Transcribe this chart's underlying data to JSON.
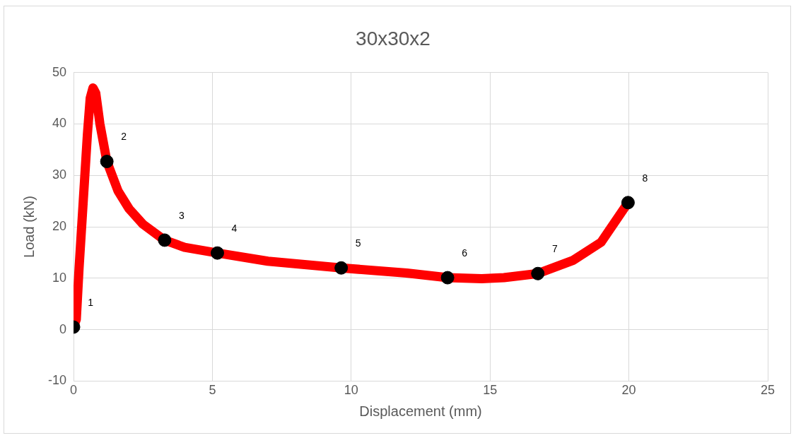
{
  "chart_data": {
    "type": "line",
    "title": "30x30x2",
    "xlabel": "Displacement (mm)",
    "ylabel": "Load (kN)",
    "series": [
      {
        "color": "#ff0000",
        "x": [
          0,
          0.1,
          0.2,
          0.35,
          0.5,
          0.6,
          0.7,
          0.8,
          0.95,
          1.2,
          1.6,
          2,
          2.5,
          3.28,
          4,
          5.18,
          7,
          9.64,
          12,
          13.47,
          14.7,
          15.5,
          16.72,
          18,
          19,
          19.97
        ],
        "values": [
          0.5,
          2,
          12,
          25,
          38,
          45,
          47,
          46,
          40,
          32.7,
          27,
          23.5,
          20.5,
          17.4,
          16,
          14.9,
          13.3,
          12,
          11,
          10.1,
          9.9,
          10.1,
          10.9,
          13.5,
          17,
          24.7
        ]
      },
      {
        "type": "scatter",
        "color": "#000000",
        "marker": "circle",
        "x": [
          0,
          1.2,
          3.28,
          5.18,
          9.64,
          13.47,
          16.72,
          19.97
        ],
        "values": [
          0.5,
          32.7,
          17.4,
          14.9,
          12,
          10.1,
          10.9,
          24.7
        ]
      }
    ],
    "annotations": [
      {
        "text": "1",
        "x": 0,
        "y": 0.5
      },
      {
        "text": "2",
        "x": 1.2,
        "y": 32.7
      },
      {
        "text": "3",
        "x": 3.28,
        "y": 17.4
      },
      {
        "text": "4",
        "x": 5.18,
        "y": 14.9
      },
      {
        "text": "5",
        "x": 9.64,
        "y": 12
      },
      {
        "text": "6",
        "x": 13.47,
        "y": 10.1
      },
      {
        "text": "7",
        "x": 16.72,
        "y": 10.9
      },
      {
        "text": "8",
        "x": 19.97,
        "y": 24.7
      }
    ],
    "xlim": [
      0,
      25
    ],
    "xticks": [
      0,
      5,
      10,
      15,
      20,
      25
    ],
    "ylim": [
      -10,
      50
    ],
    "yticks": [
      -10,
      0,
      10,
      20,
      30,
      40,
      50
    ],
    "grid": true,
    "legend": false,
    "marker": "none",
    "line_style": "solid"
  }
}
